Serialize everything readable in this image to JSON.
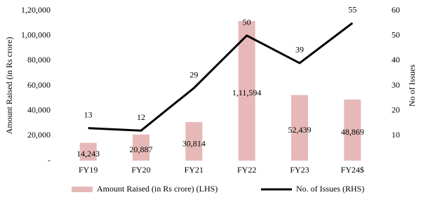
{
  "chart_data": {
    "type": "bar",
    "categories": [
      "FY19",
      "FY20",
      "FY21",
      "FY22",
      "FY23",
      "FY24$"
    ],
    "series": [
      {
        "name": "Amount Raised (in Rs crore)  (LHS)",
        "type": "bar",
        "color": "#e6b9b8",
        "values": [
          14243,
          20887,
          30814,
          111594,
          52439,
          48869
        ],
        "value_labels": [
          "14,243",
          "20,887",
          "30,814",
          "1,11,594",
          "52,439",
          "48,869"
        ]
      },
      {
        "name": "No. of Issues (RHS)",
        "type": "line",
        "color": "#000000",
        "axis": "y2",
        "values": [
          13,
          12,
          29,
          50,
          39,
          55
        ]
      }
    ],
    "ylabel": "Amount Raised (in Rs crore)",
    "y2label": "No of Issues",
    "ylim": [
      0,
      120000
    ],
    "yticks": [
      {
        "value": 0,
        "label": "-"
      },
      {
        "value": 20000,
        "label": "20,000"
      },
      {
        "value": 40000,
        "label": "40,000"
      },
      {
        "value": 60000,
        "label": "60,000"
      },
      {
        "value": 80000,
        "label": "80,000"
      },
      {
        "value": 100000,
        "label": "1,00,000"
      },
      {
        "value": 120000,
        "label": "1,20,000"
      }
    ],
    "y2lim": [
      0,
      60
    ],
    "y2ticks": [
      10,
      20,
      30,
      40,
      50,
      60
    ],
    "legend": "bottom"
  }
}
